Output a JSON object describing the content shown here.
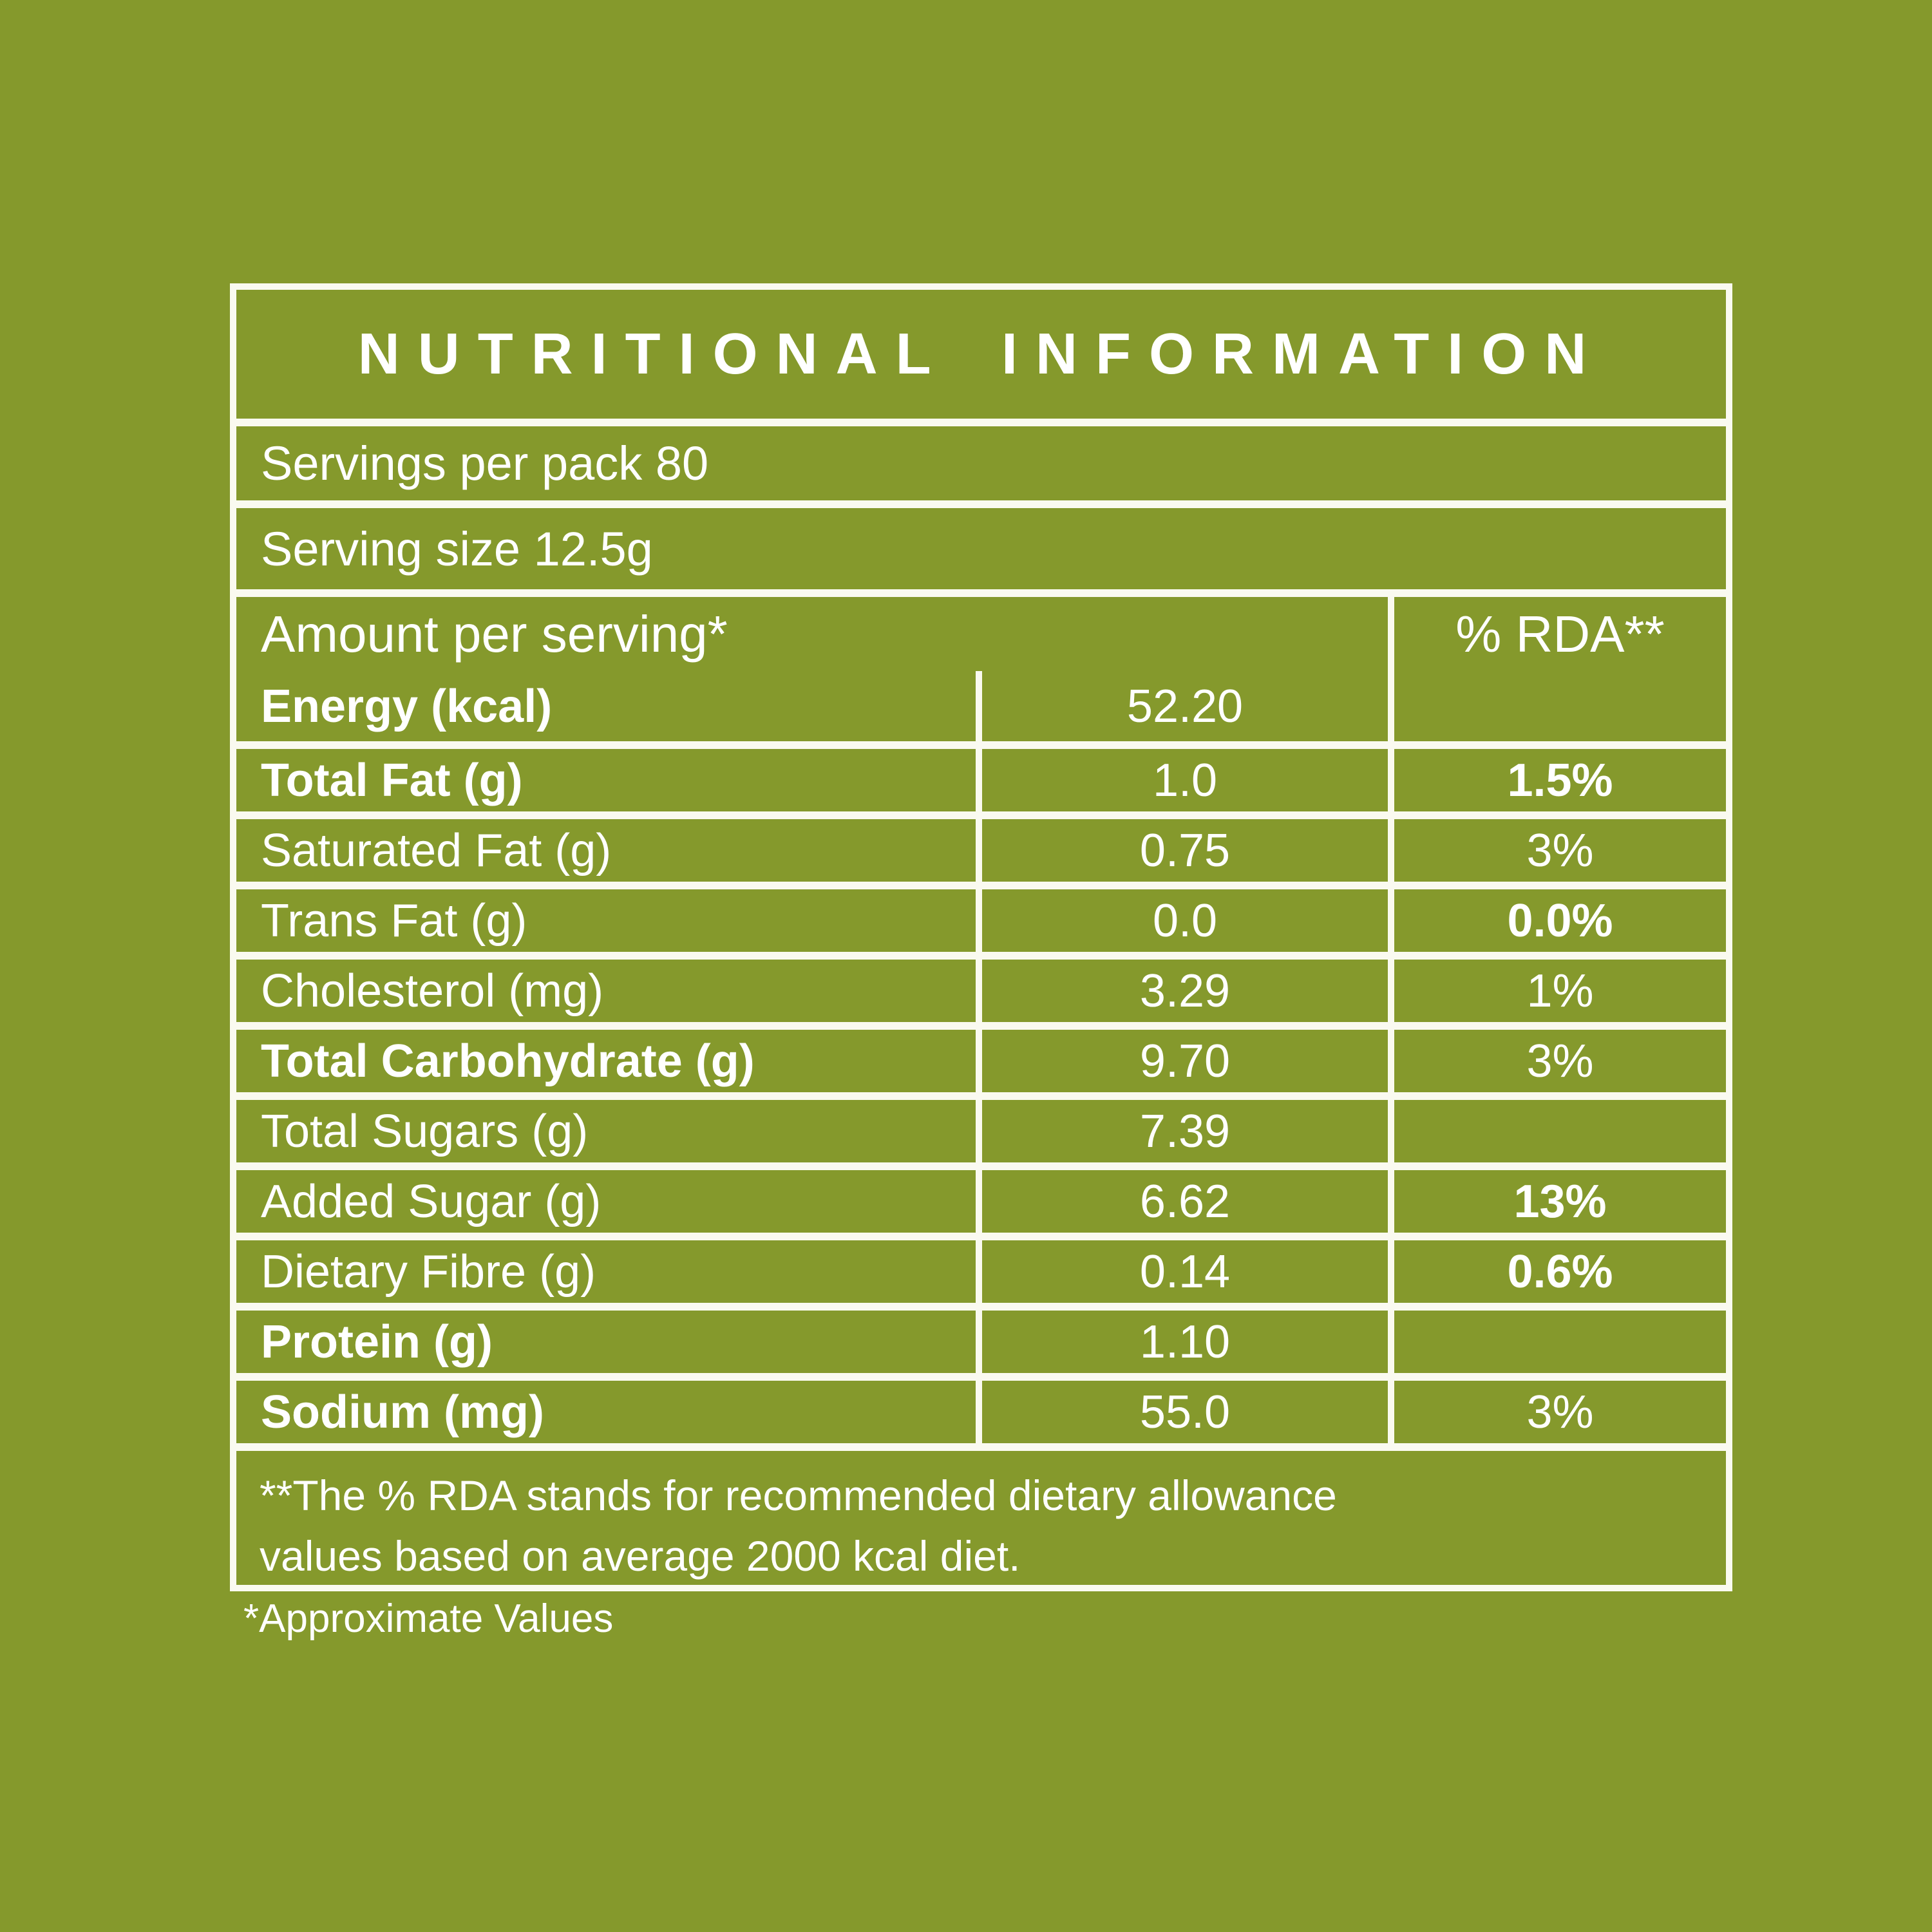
{
  "colors": {
    "background": "#85992c",
    "grid_line": "#fafaf0",
    "text": "#ffffff"
  },
  "label": {
    "title": "NUTRITIONAL INFORMATION",
    "servings_per_pack": "Servings per pack 80",
    "serving_size": "Serving size 12.5g",
    "header": {
      "amount": "Amount per serving*",
      "rda": "% RDA**"
    },
    "rows": [
      {
        "label": "Energy (kcal)",
        "amount": "52.20",
        "rda": "",
        "label_bold": true,
        "rda_bold": false
      },
      {
        "label": "Total Fat (g)",
        "amount": "1.0",
        "rda": "1.5%",
        "label_bold": true,
        "rda_bold": true
      },
      {
        "label": "Saturated Fat (g)",
        "amount": "0.75",
        "rda": "3%",
        "label_bold": false,
        "rda_bold": false
      },
      {
        "label": "Trans Fat (g)",
        "amount": "0.0",
        "rda": "0.0%",
        "label_bold": false,
        "rda_bold": true
      },
      {
        "label": "Cholesterol (mg)",
        "amount": "3.29",
        "rda": "1%",
        "label_bold": false,
        "rda_bold": false
      },
      {
        "label": "Total Carbohydrate (g)",
        "amount": "9.70",
        "rda": "3%",
        "label_bold": true,
        "rda_bold": false
      },
      {
        "label": "Total Sugars (g)",
        "amount": "7.39",
        "rda": "",
        "label_bold": false,
        "rda_bold": false
      },
      {
        "label": "Added Sugar (g)",
        "amount": "6.62",
        "rda": "13%",
        "label_bold": false,
        "rda_bold": true
      },
      {
        "label": "Dietary Fibre (g)",
        "amount": "0.14",
        "rda": "0.6%",
        "label_bold": false,
        "rda_bold": true
      },
      {
        "label": "Protein (g)",
        "amount": "1.10",
        "rda": "",
        "label_bold": true,
        "rda_bold": false
      },
      {
        "label": "Sodium (mg)",
        "amount": "55.0",
        "rda": "3%",
        "label_bold": true,
        "rda_bold": false
      }
    ],
    "footnote_line1": "**The % RDA stands for recommended dietary allowance",
    "footnote_line2": "values based on average 2000 kcal diet.",
    "approximate_note": "*Approximate Values"
  }
}
